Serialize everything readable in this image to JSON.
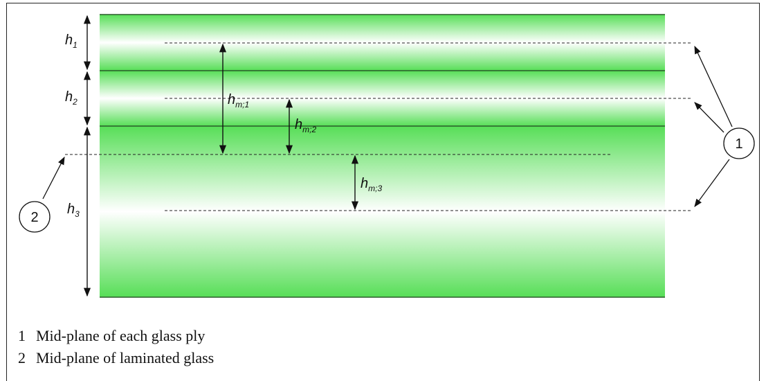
{
  "labels": {
    "h1": {
      "base": "h",
      "sub": "1"
    },
    "h2": {
      "base": "h",
      "sub": "2"
    },
    "h3": {
      "base": "h",
      "sub": "3"
    },
    "hm1": {
      "base": "h",
      "sub": "m;1"
    },
    "hm2": {
      "base": "h",
      "sub": "m;2"
    },
    "hm3": {
      "base": "h",
      "sub": "m;3"
    }
  },
  "callouts": {
    "one": "1",
    "two": "2"
  },
  "legend": [
    {
      "num": "1",
      "text": "Mid-plane of each glass ply"
    },
    {
      "num": "2",
      "text": "Mid-plane of laminated glass"
    }
  ],
  "colors": {
    "glass_green": "#4cd94c",
    "glass_white": "#ffffff",
    "line": "#2a5a2a",
    "ink": "#111111"
  }
}
